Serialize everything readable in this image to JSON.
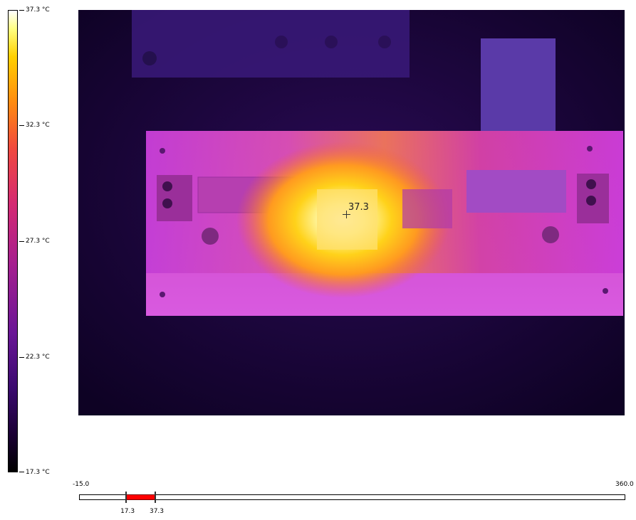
{
  "color_scale": {
    "max_label": "37.3 °C",
    "tick_2": "32.3 °C",
    "tick_3": "27.3 °C",
    "tick_4": "22.3 °C",
    "min_label": "17.3 °C",
    "palette": "iron"
  },
  "spot_marker": {
    "value_label": "37.3",
    "icon": "crosshair-icon"
  },
  "range_slider": {
    "axis_min_label": "-15.0",
    "axis_max_label": "360.0",
    "axis_min": -15.0,
    "axis_max": 360.0,
    "sel_low_label": "17.3",
    "sel_high_label": "37.3",
    "sel_low": 17.3,
    "sel_high": 37.3,
    "selection_color": "#ff0000"
  }
}
